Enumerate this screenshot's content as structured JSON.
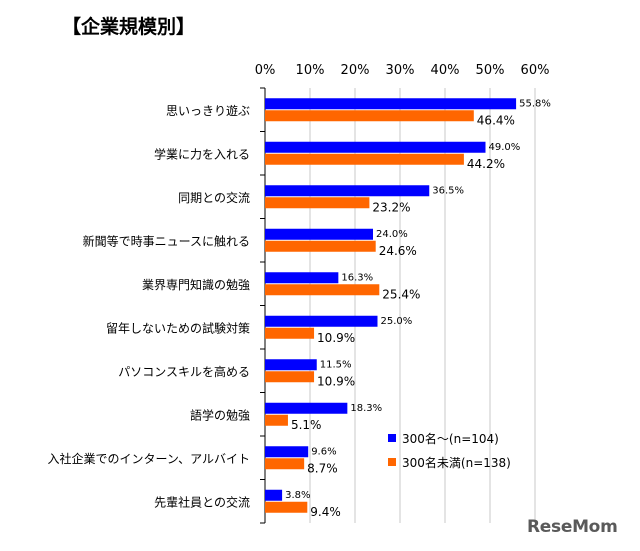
{
  "title": "【企業規模別】",
  "chart_data": {
    "type": "bar",
    "orientation": "horizontal",
    "categories": [
      "思いっきり遊ぶ",
      "学業に力を入れる",
      "同期との交流",
      "新聞等で時事ニュースに触れる",
      "業界専門知識の勉強",
      "留年しないための試験対策",
      "パソコンスキルを高める",
      "語学の勉強",
      "入社企業でのインターン、アルバイト",
      "先輩社員との交流"
    ],
    "series": [
      {
        "name": "300名～(n=104)",
        "color": "#0000ff",
        "values": [
          55.8,
          49.0,
          36.5,
          24.0,
          16.3,
          25.0,
          11.5,
          18.3,
          9.6,
          3.8
        ],
        "labels": [
          "55.8%",
          "49.0%",
          "36.5%",
          "24.0%",
          "16.3%",
          "25.0%",
          "11.5%",
          "18.3%",
          "9.6%",
          "3.8%"
        ]
      },
      {
        "name": "300名未満(n=138)",
        "color": "#ff6600",
        "values": [
          46.4,
          44.2,
          23.2,
          24.6,
          25.4,
          10.9,
          10.9,
          5.1,
          8.7,
          9.4
        ],
        "labels": [
          "46.4%",
          "44.2%",
          "23.2%",
          "24.6%",
          "25.4%",
          "10.9%",
          "10.9%",
          "5.1%",
          "8.7%",
          "9.4%"
        ]
      }
    ],
    "xlim": [
      0,
      60
    ],
    "ticks": [
      "0%",
      "10%",
      "20%",
      "30%",
      "40%",
      "50%",
      "60%"
    ],
    "grid": true,
    "legend_position": "bottom-right"
  },
  "watermark": "ReseMom"
}
